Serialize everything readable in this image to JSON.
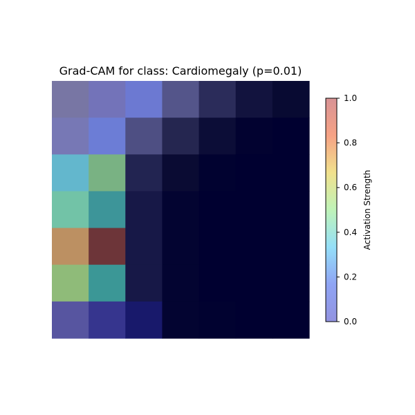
{
  "chart_data": {
    "type": "heatmap",
    "title": "Grad-CAM for class: Cardiomegaly (p=0.01)",
    "rows": 7,
    "cols": 7,
    "colors": [
      [
        "#7876a4",
        "#7373b9",
        "#6c79d2",
        "#54558a",
        "#2b2c5a",
        "#12133e",
        "#080a32"
      ],
      [
        "#7778b5",
        "#6c7dd6",
        "#4e4f83",
        "#252650",
        "#0c0d37",
        "#020230",
        "#000030"
      ],
      [
        "#63b7cd",
        "#79b283",
        "#222451",
        "#0a0b33",
        "#010230",
        "#000030",
        "#000030"
      ],
      [
        "#72c3a7",
        "#3d9599",
        "#171847",
        "#030431",
        "#000030",
        "#000030",
        "#000030"
      ],
      [
        "#bc9062",
        "#6d3539",
        "#171847",
        "#030431",
        "#000030",
        "#000030",
        "#000030"
      ],
      [
        "#8fbb79",
        "#3b9796",
        "#171847",
        "#030431",
        "#000030",
        "#000030",
        "#000030"
      ],
      [
        "#5755a0",
        "#36358e",
        "#18196b",
        "#030431",
        "#010230",
        "#000030",
        "#000030"
      ]
    ],
    "colorbar": {
      "label": "Activation Strength",
      "min": 0.0,
      "max": 1.0,
      "ticks": [
        "0.0",
        "0.2",
        "0.4",
        "0.6",
        "0.8",
        "1.0"
      ],
      "tick_values": [
        0.0,
        0.2,
        0.4,
        0.6,
        0.8,
        1.0
      ],
      "gradient": [
        "#9293e0",
        "#8fa4f4",
        "#95dff8",
        "#bff3b8",
        "#f1e18d",
        "#f6a285",
        "#d89395"
      ]
    }
  }
}
